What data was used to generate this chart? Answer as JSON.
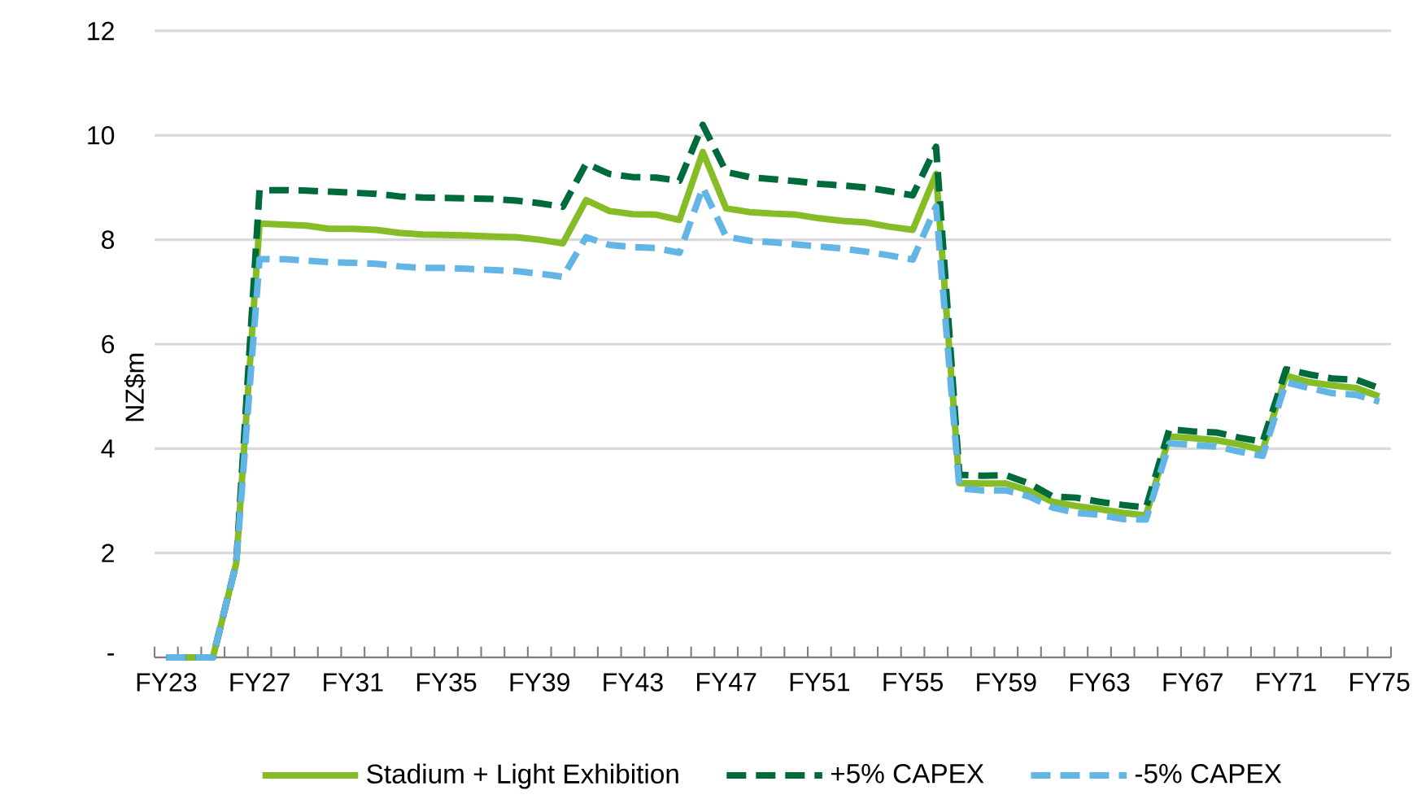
{
  "chart_data": {
    "type": "line",
    "ylabel": "NZ$m",
    "categories": [
      "FY23",
      null,
      null,
      null,
      "FY27",
      null,
      null,
      null,
      "FY31",
      null,
      null,
      null,
      "FY35",
      null,
      null,
      null,
      "FY39",
      null,
      null,
      null,
      "FY43",
      null,
      null,
      null,
      "FY47",
      null,
      null,
      null,
      "FY51",
      null,
      null,
      null,
      "FY55",
      null,
      null,
      null,
      "FY59",
      null,
      null,
      null,
      "FY63",
      null,
      null,
      null,
      "FY67",
      null,
      null,
      null,
      "FY71",
      null,
      null,
      null,
      "FY75"
    ],
    "ylim": [
      0,
      12
    ],
    "yticks": [
      {
        "value": 0,
        "label": "-"
      },
      2,
      4,
      6,
      8,
      10,
      12
    ],
    "grid": "y",
    "legend": "bottom",
    "marker": "none",
    "series": [
      {
        "name": "Stadium + Light Exhibition",
        "color": "#86bc25",
        "line_style": "solid",
        "values": [
          0,
          0,
          0,
          1.8,
          8.31,
          8.29,
          8.27,
          8.21,
          8.21,
          8.19,
          8.13,
          8.1,
          8.09,
          8.08,
          8.06,
          8.05,
          8.0,
          7.93,
          8.76,
          8.55,
          8.49,
          8.48,
          8.38,
          9.68,
          8.6,
          8.53,
          8.5,
          8.48,
          8.41,
          8.36,
          8.33,
          8.25,
          8.19,
          9.26,
          3.34,
          3.33,
          3.33,
          3.19,
          2.98,
          2.9,
          2.84,
          2.77,
          2.72,
          4.23,
          4.2,
          4.16,
          4.08,
          3.97,
          5.4,
          5.27,
          5.21,
          5.16,
          5.0
        ]
      },
      {
        "name": "+5% CAPEX",
        "color": "#006b3a",
        "line_style": "dashed",
        "values": [
          0,
          0,
          0,
          1.8,
          8.95,
          8.95,
          8.94,
          8.92,
          8.9,
          8.88,
          8.83,
          8.81,
          8.8,
          8.79,
          8.78,
          8.75,
          8.7,
          8.63,
          9.46,
          9.26,
          9.2,
          9.19,
          9.13,
          10.2,
          9.3,
          9.2,
          9.16,
          9.12,
          9.07,
          9.04,
          9.0,
          8.93,
          8.85,
          9.78,
          3.5,
          3.48,
          3.49,
          3.33,
          3.08,
          3.06,
          2.98,
          2.92,
          2.87,
          4.37,
          4.33,
          4.31,
          4.21,
          4.13,
          5.52,
          5.42,
          5.34,
          5.32,
          5.16
        ]
      },
      {
        "name": "-5% CAPEX",
        "color": "#62b5e5",
        "line_style": "dashed",
        "values": [
          0,
          0,
          0,
          1.8,
          7.63,
          7.63,
          7.6,
          7.57,
          7.56,
          7.54,
          7.49,
          7.46,
          7.46,
          7.44,
          7.42,
          7.4,
          7.35,
          7.29,
          8.05,
          7.9,
          7.86,
          7.84,
          7.75,
          9.0,
          8.06,
          7.98,
          7.95,
          7.91,
          7.87,
          7.83,
          7.77,
          7.7,
          7.62,
          8.64,
          3.24,
          3.2,
          3.2,
          3.08,
          2.87,
          2.77,
          2.73,
          2.65,
          2.64,
          4.1,
          4.07,
          4.04,
          3.94,
          3.86,
          5.27,
          5.16,
          5.06,
          5.03,
          4.9
        ]
      }
    ]
  }
}
